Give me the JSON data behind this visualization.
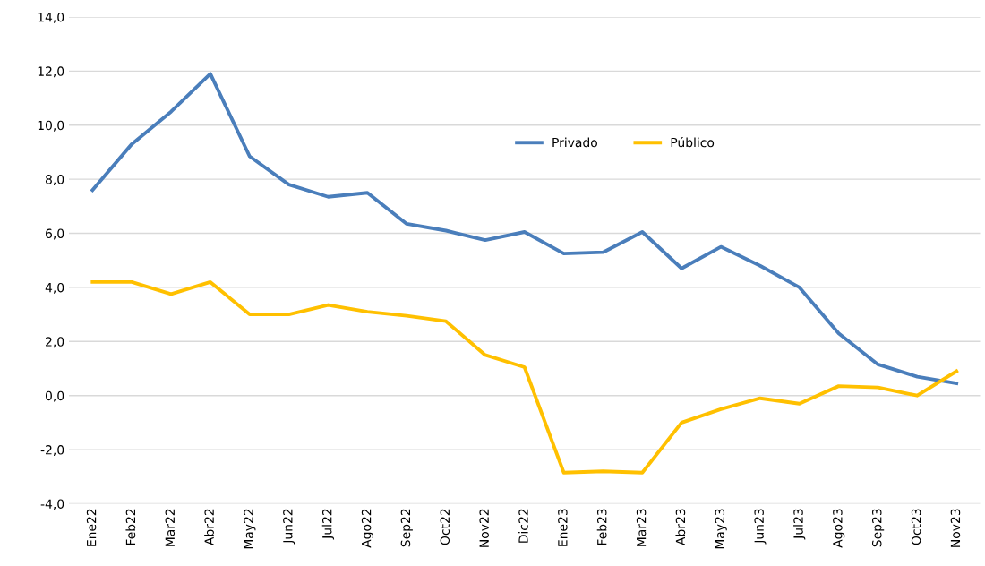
{
  "chart_data": {
    "type": "line",
    "categories": [
      "Ene22",
      "Feb22",
      "Mar22",
      "Abr22",
      "May22",
      "Jun22",
      "Jul22",
      "Ago22",
      "Sep22",
      "Oct22",
      "Nov22",
      "Dic22",
      "Ene23",
      "Feb23",
      "Mar23",
      "Abr23",
      "May23",
      "Jun23",
      "Jul23",
      "Ago23",
      "Sep23",
      "Oct23",
      "Nov23"
    ],
    "series": [
      {
        "name": "Privado",
        "color": "#4a7ebb",
        "values": [
          7.6,
          9.3,
          10.5,
          11.9,
          8.85,
          7.8,
          7.35,
          7.5,
          6.35,
          6.1,
          5.75,
          6.05,
          5.25,
          5.3,
          6.05,
          4.7,
          5.5,
          4.8,
          4.0,
          2.3,
          1.15,
          0.7,
          0.45
        ]
      },
      {
        "name": "Público",
        "color": "#ffc000",
        "values": [
          4.2,
          4.2,
          3.75,
          4.2,
          3.0,
          3.0,
          3.35,
          3.1,
          2.95,
          2.75,
          1.5,
          1.05,
          -2.85,
          -2.8,
          -2.85,
          -1.0,
          -0.5,
          -0.1,
          -0.3,
          0.35,
          0.3,
          0.0,
          0.9
        ]
      }
    ],
    "ylim": [
      -4,
      14
    ],
    "yticks": [
      {
        "value": -4,
        "label": "-4,0"
      },
      {
        "value": -2,
        "label": "-2,0"
      },
      {
        "value": 0,
        "label": "0,0"
      },
      {
        "value": 2,
        "label": "2,0"
      },
      {
        "value": 4,
        "label": "4,0"
      },
      {
        "value": 6,
        "label": "6,0"
      },
      {
        "value": 8,
        "label": "8,0"
      },
      {
        "value": 10,
        "label": "10,0"
      },
      {
        "value": 12,
        "label": "12,0"
      },
      {
        "value": 14,
        "label": "14,0"
      }
    ],
    "grid": "y",
    "legend": "center",
    "marker": "none",
    "line_style": "solid"
  }
}
